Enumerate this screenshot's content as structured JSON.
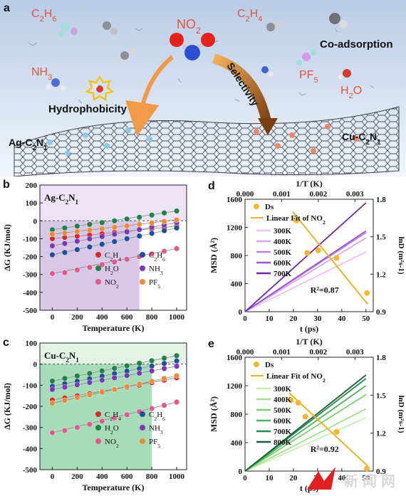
{
  "panel_a": {
    "letter": "a",
    "molecules": [
      "C2H6",
      "C2H4",
      "NH3",
      "PF5",
      "H2O",
      "NO2"
    ],
    "co_adsorption": "Co-adsorption",
    "hydrophobicity": "Hydrophobicity",
    "selectivity": "Selectivity",
    "ag_label": "Ag-C2N1",
    "cu_label": "Cu-C2N1",
    "colors": {
      "sky_top": "#b9cce6",
      "sky_bottom": "#eef3fa",
      "formula": "#e4553a",
      "arrow": "#f19a4a",
      "selectivity_arrow": "#7a3f10"
    }
  },
  "watermark": {
    "text": "新闻网"
  },
  "chart_data": [
    {
      "panel": "b",
      "type": "scatter",
      "inset_label": "Ag-C2N1",
      "xlabel": "Temperature (K)",
      "ylabel": "ΔG (KJ/mol)",
      "xlim": [
        -100,
        1080
      ],
      "ylim": [
        -500,
        200
      ],
      "xticks": [
        0,
        200,
        400,
        600,
        800,
        1000
      ],
      "yticks": [
        200,
        100,
        0,
        -100,
        -200,
        -300,
        -400,
        -500
      ],
      "shade": {
        "x_max": 700,
        "y_max": 0,
        "color": "#b59ad1"
      },
      "header_band_color": "#ece3f5",
      "x": [
        0,
        100,
        200,
        300,
        400,
        500,
        600,
        700,
        800,
        900,
        1000
      ],
      "series": [
        {
          "name": "C2H4",
          "color": "#d12b2b",
          "values": [
            -100,
            -93,
            -86,
            -79,
            -72,
            -65,
            -58,
            -51,
            -44,
            -37,
            -30
          ]
        },
        {
          "name": "C2H6",
          "color": "#1f4e9a",
          "values": [
            -190,
            -177,
            -161,
            -146,
            -131,
            -116,
            -100,
            -85,
            -70,
            -55,
            -40
          ]
        },
        {
          "name": "H2O",
          "color": "#238049",
          "values": [
            -50,
            -40,
            -30,
            -20,
            -10,
            0,
            10,
            20,
            32,
            44,
            55
          ]
        },
        {
          "name": "NH3",
          "color": "#7a38b8",
          "values": [
            -140,
            -127,
            -114,
            -101,
            -88,
            -75,
            -62,
            -49,
            -36,
            -23,
            -10
          ]
        },
        {
          "name": "NO2",
          "color": "#e2598c",
          "values": [
            -295,
            -290,
            -275,
            -260,
            -245,
            -230,
            -215,
            -200,
            -185,
            -170,
            -155
          ]
        },
        {
          "name": "PF5",
          "color": "#f08a3a",
          "values": [
            -75,
            -68,
            -60,
            -52,
            -44,
            -36,
            -28,
            -20,
            -12,
            -4,
            5
          ]
        }
      ],
      "legend": {
        "placement": "bottom-right",
        "columns": 2
      }
    },
    {
      "panel": "c",
      "type": "scatter",
      "inset_label": "Cu-C2N1",
      "xlabel": "Temperature (K)",
      "ylabel": "ΔG (KJ/mol)",
      "xlim": [
        -100,
        1080
      ],
      "ylim": [
        -500,
        100
      ],
      "xticks": [
        0,
        200,
        400,
        600,
        800,
        1000
      ],
      "yticks": [
        100,
        0,
        -100,
        -200,
        -300,
        -400,
        -500
      ],
      "shade": {
        "x_max": 800,
        "y_max": 0,
        "color": "#5fc07e"
      },
      "header_band_color": "#e3f3e8",
      "x": [
        0,
        100,
        200,
        300,
        400,
        500,
        600,
        700,
        800,
        900,
        1000
      ],
      "series": [
        {
          "name": "C2H4",
          "color": "#d12b2b",
          "values": [
            -170,
            -160,
            -150,
            -140,
            -130,
            -120,
            -110,
            -100,
            -88,
            -76,
            -65
          ]
        },
        {
          "name": "C2H6",
          "color": "#1f4e9a",
          "values": [
            -105,
            -93,
            -81,
            -69,
            -57,
            -45,
            -33,
            -21,
            -9,
            3,
            15
          ]
        },
        {
          "name": "H2O",
          "color": "#238049",
          "values": [
            -80,
            -68,
            -56,
            -44,
            -32,
            -20,
            -8,
            4,
            16,
            28,
            40
          ]
        },
        {
          "name": "NH3",
          "color": "#7a38b8",
          "values": [
            -120,
            -109,
            -98,
            -87,
            -76,
            -65,
            -54,
            -43,
            -32,
            -21,
            -10
          ]
        },
        {
          "name": "NO2",
          "color": "#e2598c",
          "values": [
            -325,
            -315,
            -300,
            -285,
            -270,
            -255,
            -240,
            -225,
            -210,
            -195,
            -180
          ]
        },
        {
          "name": "PF5",
          "color": "#f08a3a",
          "values": [
            -185,
            -172,
            -159,
            -146,
            -133,
            -120,
            -107,
            -94,
            -81,
            -68,
            -55
          ]
        }
      ],
      "legend": {
        "placement": "bottom-right",
        "columns": 2
      }
    },
    {
      "panel": "d",
      "type": "line",
      "xlabel": "t (ps)",
      "ylabel": "MSD (Å²)",
      "x2label": "1/T (K)",
      "y2label": "lnD (m²s-1)",
      "xlim": [
        0,
        53
      ],
      "ylim": [
        0,
        1600
      ],
      "xticks": [
        0,
        10,
        20,
        30,
        40,
        50
      ],
      "yticks": [
        0,
        400,
        800,
        1200,
        1600
      ],
      "x2lim": [
        0,
        0.0035
      ],
      "x2ticks": [
        "0.000",
        "0.001",
        "0.002",
        "0.003"
      ],
      "y2lim": [
        0.9,
        1.8
      ],
      "y2ticks": [
        "0.9",
        "1.2",
        "1.5",
        "1.8"
      ],
      "lines": [
        {
          "name": "300K",
          "color": "#e4c6ef",
          "slope": 17
        },
        {
          "name": "400K",
          "color": "#d5a8ea",
          "slope": 21
        },
        {
          "name": "500K",
          "color": "#c080df",
          "slope": 22.5
        },
        {
          "name": "600K",
          "color": "#9b55cc",
          "slope": 23
        },
        {
          "name": "700K",
          "color": "#6a28a8",
          "slope": 31
        }
      ],
      "ds_points": {
        "name": "Ds",
        "color": "#f2b631",
        "inv_T": [
          0.0014,
          0.0017,
          0.002,
          0.0025,
          0.00333
        ],
        "lnD": [
          1.63,
          1.37,
          1.39,
          1.33,
          1.05
        ]
      },
      "fit": {
        "name": "Linear Fit of NO2",
        "color": "#e8b52a",
        "inv_T": [
          0.0013,
          0.00335
        ],
        "lnD": [
          1.7,
          0.96
        ]
      },
      "r2": "R²=0.87"
    },
    {
      "panel": "e",
      "type": "line",
      "xlabel": "t (ps)",
      "ylabel": "MSD (Å²)",
      "x2label": "1/T (K)",
      "y2label": "lnD (m²s-1)",
      "xlim": [
        0,
        53
      ],
      "ylim": [
        0,
        1600
      ],
      "xticks": [
        0,
        10,
        20,
        30,
        40,
        50
      ],
      "yticks": [
        0,
        400,
        800,
        1200,
        1600
      ],
      "x2lim": [
        0,
        0.0035
      ],
      "x2ticks": [
        "0.000",
        "0.001",
        "0.002",
        "0.003"
      ],
      "y2lim": [
        0.9,
        1.8
      ],
      "y2ticks": [
        "0.9",
        "1.2",
        "1.5",
        "1.8"
      ],
      "lines": [
        {
          "name": "300K",
          "color": "#c5f0b4",
          "slope": 15
        },
        {
          "name": "400K",
          "color": "#a3e08c",
          "slope": 17.5
        },
        {
          "name": "500K",
          "color": "#7ccf6c",
          "slope": 21.5
        },
        {
          "name": "600K",
          "color": "#4eb05c",
          "slope": 24
        },
        {
          "name": "700K",
          "color": "#2d8a4e",
          "slope": 26
        },
        {
          "name": "800K",
          "color": "#1b5e3c",
          "slope": 27
        }
      ],
      "ds_points": {
        "name": "Ds",
        "color": "#f2b631",
        "inv_T": [
          0.00125,
          0.00145,
          0.00165,
          0.0025,
          0.00333
        ],
        "lnD": [
          1.46,
          1.44,
          1.33,
          1.21,
          0.92
        ]
      },
      "fit": {
        "name": "Linear Fit of NO2",
        "color": "#e8b52a",
        "inv_T": [
          0.0012,
          0.00335
        ],
        "lnD": [
          1.52,
          0.94
        ]
      },
      "r2": "R²=0.92"
    }
  ]
}
